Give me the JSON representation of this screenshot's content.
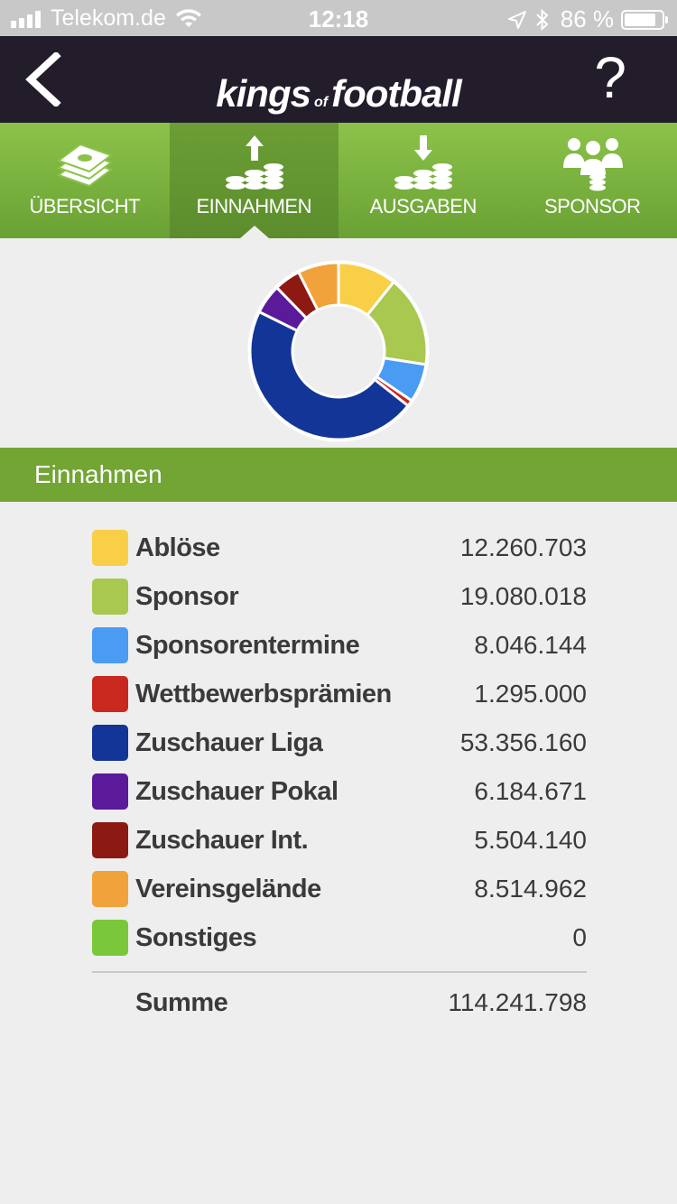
{
  "status_bar": {
    "carrier": "Telekom.de",
    "time": "12:18",
    "battery": "86 %",
    "battery_level": 0.86
  },
  "header": {
    "logo_kings": "kings",
    "logo_of": "of",
    "logo_football": "football",
    "help": "?",
    "back_icon": "chevron-left-icon"
  },
  "tabs": [
    {
      "label": "ÜBERSICHT",
      "icon": "money-stack-icon",
      "active": false
    },
    {
      "label": "EINNAHMEN",
      "icon": "coins-up-icon",
      "active": true
    },
    {
      "label": "AUSGABEN",
      "icon": "coins-down-icon",
      "active": false
    },
    {
      "label": "SPONSOR",
      "icon": "sponsor-group-icon",
      "active": false
    }
  ],
  "section": {
    "title": "Einnahmen"
  },
  "chart_data": {
    "type": "pie",
    "donut": true,
    "categories": [
      "Ablöse",
      "Sponsor",
      "Sponsorentermine",
      "Wettbewerbsprämien",
      "Zuschauer Liga",
      "Zuschauer Pokal",
      "Zuschauer Int.",
      "Vereinsgelände",
      "Sonstiges"
    ],
    "values": [
      12260703,
      19080018,
      8046144,
      1295000,
      53356160,
      6184671,
      5504140,
      8514962,
      0
    ],
    "display_values": [
      "12.260.703",
      "19.080.018",
      "8.046.144",
      "1.295.000",
      "53.356.160",
      "6.184.671",
      "5.504.140",
      "8.514.962",
      "0"
    ],
    "colors": [
      "#f9cf48",
      "#a8c850",
      "#4a9cf2",
      "#c9281e",
      "#123597",
      "#5a1a9a",
      "#8c1a12",
      "#f2a23a",
      "#7ac73a"
    ]
  },
  "summary": {
    "label": "Summe",
    "value": "114.241.798"
  }
}
